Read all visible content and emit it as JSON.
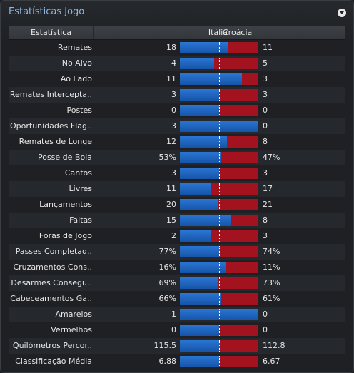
{
  "panel": {
    "title": "Estatísticas Jogo",
    "menu_icon": "chevron-down-icon"
  },
  "header": {
    "stat_label": "Estatística",
    "home_team": "Itália",
    "away_team": "Croácia"
  },
  "colors": {
    "home": "#1f66c4",
    "away": "#c21a28",
    "title": "#8fb6e6"
  },
  "stats": [
    {
      "label": "Remates",
      "home": "18",
      "away": "11",
      "home_share": 0.62
    },
    {
      "label": "No Alvo",
      "home": "4",
      "away": "5",
      "home_share": 0.44
    },
    {
      "label": "Ao Lado",
      "home": "11",
      "away": "3",
      "home_share": 0.79
    },
    {
      "label": "Remates Intercepta..",
      "home": "3",
      "away": "3",
      "home_share": 0.5
    },
    {
      "label": "Postes",
      "home": "0",
      "away": "0",
      "home_share": 0.5
    },
    {
      "label": "Oportunidades Flag..",
      "home": "3",
      "away": "0",
      "home_share": 1.0
    },
    {
      "label": "Remates de Longe",
      "home": "12",
      "away": "8",
      "home_share": 0.6
    },
    {
      "label": "Posse de Bola",
      "home": "53%",
      "away": "47%",
      "home_share": 0.53
    },
    {
      "label": "Cantos",
      "home": "3",
      "away": "3",
      "home_share": 0.5
    },
    {
      "label": "Livres",
      "home": "11",
      "away": "17",
      "home_share": 0.39
    },
    {
      "label": "Lançamentos",
      "home": "20",
      "away": "21",
      "home_share": 0.49
    },
    {
      "label": "Faltas",
      "home": "15",
      "away": "8",
      "home_share": 0.65
    },
    {
      "label": "Foras de Jogo",
      "home": "2",
      "away": "3",
      "home_share": 0.4
    },
    {
      "label": "Passes Completad..",
      "home": "77%",
      "away": "74%",
      "home_share": 0.51
    },
    {
      "label": "Cruzamentos Cons..",
      "home": "16%",
      "away": "11%",
      "home_share": 0.59
    },
    {
      "label": "Desarmes Consegu..",
      "home": "69%",
      "away": "73%",
      "home_share": 0.49
    },
    {
      "label": "Cabeceamentos Ga..",
      "home": "66%",
      "away": "61%",
      "home_share": 0.52
    },
    {
      "label": "Amarelos",
      "home": "1",
      "away": "0",
      "home_share": 1.0
    },
    {
      "label": "Vermelhos",
      "home": "0",
      "away": "0",
      "home_share": 0.5
    },
    {
      "label": "Quilómetros Percor..",
      "home": "115.5",
      "away": "112.8",
      "home_share": 0.51
    },
    {
      "label": "Classificação Média",
      "home": "6.88",
      "away": "6.67",
      "home_share": 0.51
    }
  ]
}
